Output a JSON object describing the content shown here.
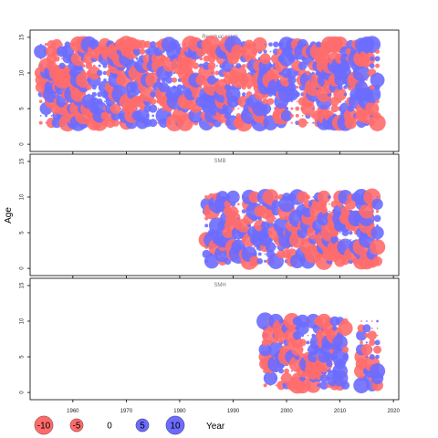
{
  "chart_data": {
    "type": "scatter",
    "xlabel": "Year",
    "ylabel": "Age",
    "xlim": [
      1952,
      2021
    ],
    "ylim": [
      -0.5,
      15.5
    ],
    "x_ticks": [
      1960,
      1970,
      1980,
      1990,
      2000,
      2010,
      2020
    ],
    "y_ticks": [
      0,
      5,
      10,
      15
    ],
    "colors": {
      "positive": "#6b6bff",
      "negative": "#ff6b6b"
    },
    "legend": {
      "placement": "bottom-left",
      "entries": [
        {
          "label": "-10",
          "value": -10
        },
        {
          "label": "-5",
          "value": -5
        },
        {
          "label": "0",
          "value": 0
        },
        {
          "label": "5",
          "value": 5
        },
        {
          "label": "10",
          "value": 10
        }
      ]
    },
    "panels": [
      {
        "title": "Residual catch",
        "year_range": [
          1954,
          2017
        ],
        "age_range": [
          3,
          14
        ],
        "seed": 11
      },
      {
        "title": "SMB",
        "year_range": [
          1985,
          2017
        ],
        "age_range": [
          1,
          10
        ],
        "seed": 23
      },
      {
        "title": "SMH",
        "year_range": [
          1996,
          2017
        ],
        "age_range": [
          1,
          10
        ],
        "seed": 37,
        "gap_years": [
          2012,
          2013
        ]
      }
    ]
  }
}
